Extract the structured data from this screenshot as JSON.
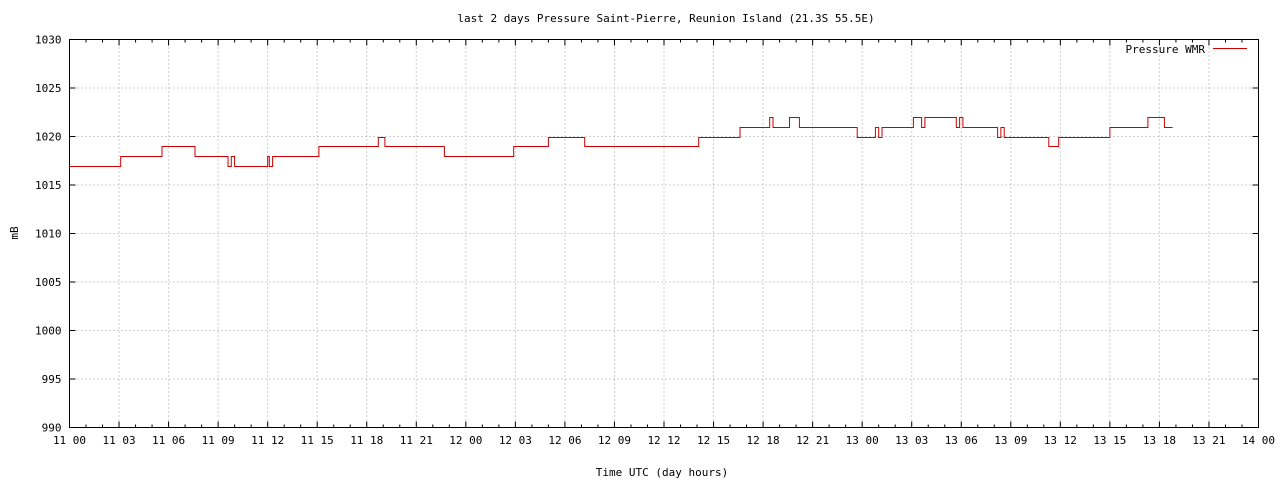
{
  "chart_data": {
    "type": "line",
    "title": "last 2 days Pressure Saint-Pierre, Reunion Island (21.3S 55.5E)",
    "xlabel": "Time UTC (day hours)",
    "ylabel": "mB",
    "xlim": [
      0,
      72
    ],
    "ylim": [
      990,
      1030
    ],
    "grid": true,
    "legend_position": "top-right",
    "x_tick_labels": [
      "11 00",
      "11 03",
      "11 06",
      "11 09",
      "11 12",
      "11 15",
      "11 18",
      "11 21",
      "12 00",
      "12 03",
      "12 06",
      "12 09",
      "12 12",
      "12 15",
      "12 18",
      "12 21",
      "13 00",
      "13 03",
      "13 06",
      "13 09",
      "13 12",
      "13 15",
      "13 18",
      "13 21",
      "14 00"
    ],
    "x_tick_values": [
      0,
      3,
      6,
      9,
      12,
      15,
      18,
      21,
      24,
      27,
      30,
      33,
      36,
      39,
      42,
      45,
      48,
      51,
      54,
      57,
      60,
      63,
      66,
      69,
      72
    ],
    "y_ticks": [
      990,
      995,
      1000,
      1005,
      1010,
      1015,
      1020,
      1025,
      1030
    ],
    "series": [
      {
        "name": "Pressure WMR",
        "color": "#cc0000",
        "step": true,
        "points": [
          [
            0,
            1017
          ],
          [
            3.1,
            1018
          ],
          [
            5.6,
            1019
          ],
          [
            7.6,
            1018
          ],
          [
            9.6,
            1017
          ],
          [
            9.8,
            1018
          ],
          [
            10,
            1017
          ],
          [
            12,
            1018
          ],
          [
            12.1,
            1017
          ],
          [
            12.3,
            1018
          ],
          [
            15.1,
            1019
          ],
          [
            18.7,
            1020
          ],
          [
            19.1,
            1019
          ],
          [
            22.7,
            1018
          ],
          [
            26.9,
            1019
          ],
          [
            29,
            1020
          ],
          [
            31.2,
            1019
          ],
          [
            38.1,
            1020
          ],
          [
            40.6,
            1021
          ],
          [
            42.4,
            1022
          ],
          [
            42.6,
            1021
          ],
          [
            43.6,
            1022
          ],
          [
            44.2,
            1021
          ],
          [
            47.7,
            1020
          ],
          [
            48.8,
            1021
          ],
          [
            49,
            1020
          ],
          [
            49.2,
            1021
          ],
          [
            51.1,
            1022
          ],
          [
            51.6,
            1021
          ],
          [
            51.8,
            1022
          ],
          [
            53.7,
            1021
          ],
          [
            53.9,
            1022
          ],
          [
            54.1,
            1021
          ],
          [
            56.2,
            1020
          ],
          [
            56.4,
            1021
          ],
          [
            56.6,
            1020
          ],
          [
            59.3,
            1019
          ],
          [
            59.9,
            1020
          ],
          [
            63,
            1021
          ],
          [
            65.3,
            1022
          ],
          [
            66.3,
            1021
          ],
          [
            66.8,
            1021
          ]
        ]
      }
    ]
  }
}
